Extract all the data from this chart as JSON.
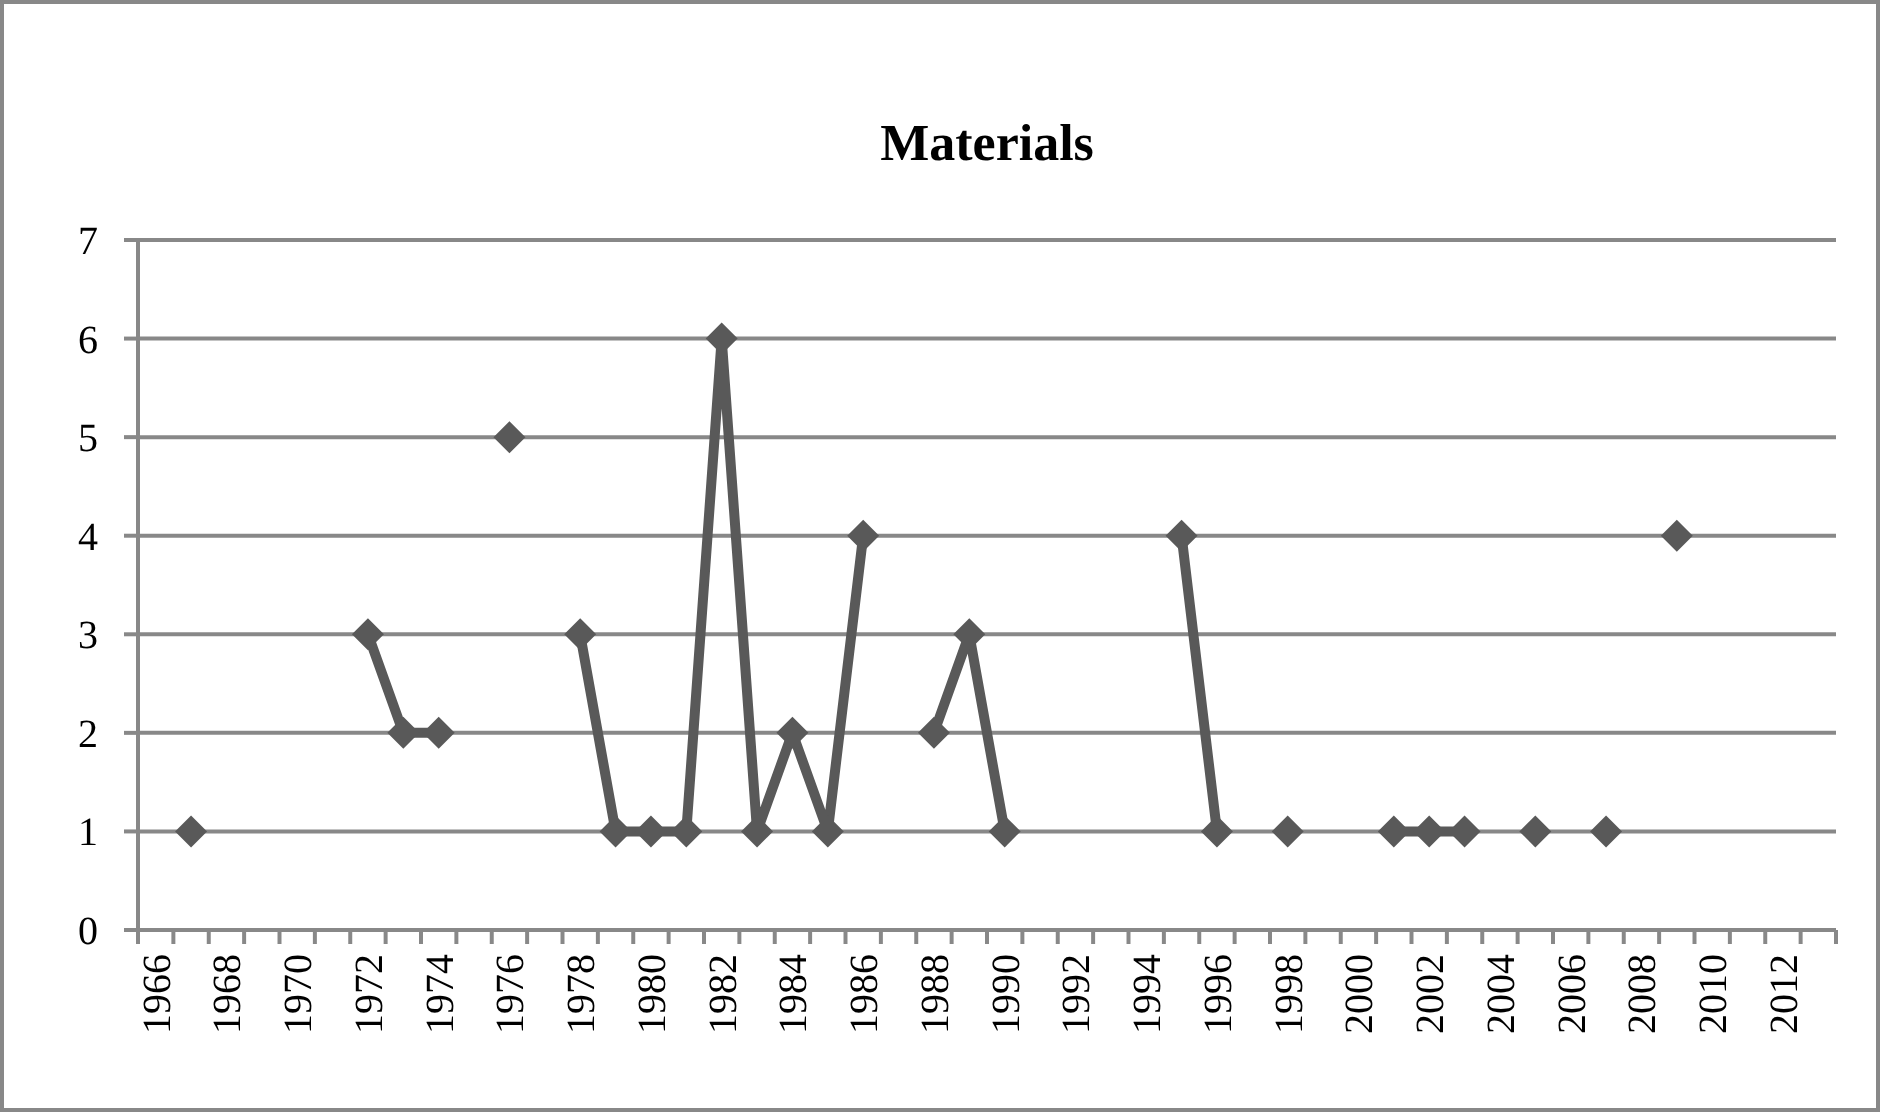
{
  "chart_data": {
    "type": "line",
    "title": "Materials",
    "categories": [
      "1966",
      null,
      "1968",
      null,
      "1970",
      null,
      "1972",
      null,
      "1974",
      null,
      "1976",
      null,
      "1978",
      null,
      "1980",
      null,
      "1982",
      null,
      "1984",
      null,
      "1986",
      null,
      "1988",
      null,
      "1990",
      null,
      "1992",
      null,
      "1994",
      null,
      "1996",
      null,
      "1998",
      null,
      "2000",
      null,
      "2002",
      null,
      "2004",
      null,
      "2006",
      null,
      "2008",
      null,
      "2010",
      null,
      "2012",
      null
    ],
    "series": [
      {
        "color": "#595959",
        "values": [
          null,
          1,
          null,
          null,
          null,
          null,
          3,
          2,
          2,
          null,
          5,
          null,
          3,
          1,
          1,
          1,
          6,
          1,
          2,
          1,
          4,
          null,
          2,
          3,
          1,
          null,
          null,
          null,
          null,
          4,
          1,
          null,
          1,
          null,
          null,
          1,
          1,
          1,
          null,
          1,
          null,
          1,
          null,
          4,
          null,
          null,
          null,
          null
        ]
      }
    ],
    "ylim": [
      0,
      7
    ],
    "yticks": [
      0,
      1,
      2,
      3,
      4,
      5,
      6,
      7
    ],
    "grid": "y",
    "marker": "diamond",
    "line_style": "solid"
  }
}
